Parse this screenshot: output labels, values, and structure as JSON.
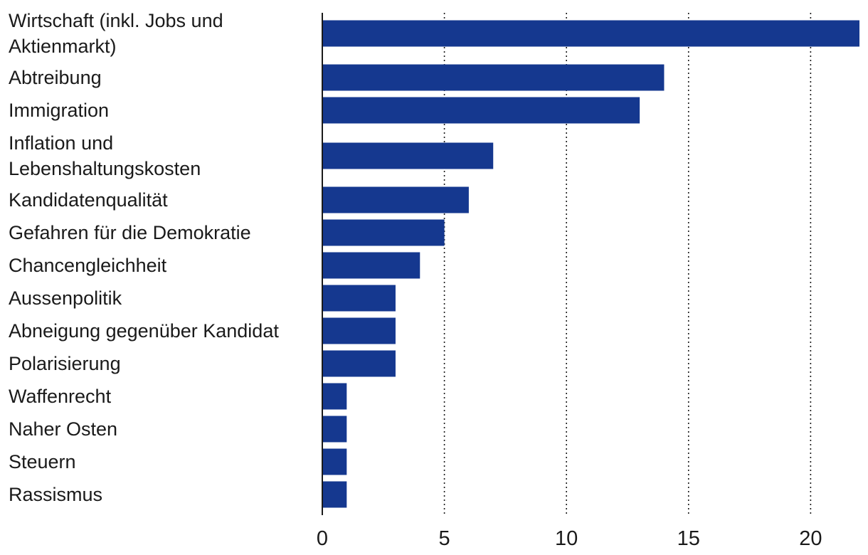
{
  "chart_data": {
    "type": "bar",
    "orientation": "horizontal",
    "categories": [
      [
        "Wirtschaft (inkl. Jobs und",
        "Aktienmarkt)"
      ],
      [
        "Abtreibung"
      ],
      [
        "Immigration"
      ],
      [
        "Inflation und",
        "Lebenshaltungskosten"
      ],
      [
        "Kandidatenqualität"
      ],
      [
        "Gefahren für die Demokratie"
      ],
      [
        "Chancengleichheit"
      ],
      [
        "Aussenpolitik"
      ],
      [
        "Abneigung gegenüber Kandidat"
      ],
      [
        "Polarisierung"
      ],
      [
        "Waffenrecht"
      ],
      [
        "Naher Osten"
      ],
      [
        "Steuern"
      ],
      [
        "Rassismus"
      ]
    ],
    "values": [
      22,
      14,
      13,
      7,
      6,
      5,
      4,
      3,
      3,
      3,
      1,
      1,
      1,
      1
    ],
    "xlim": [
      0,
      22
    ],
    "xticks": [
      0,
      5,
      10,
      15,
      20
    ],
    "xtick_labels": [
      "0",
      "5",
      "10",
      "15",
      "20"
    ],
    "grid": "vertical-dotted",
    "bar_color": "#15388f",
    "title": "",
    "xlabel": "",
    "ylabel": ""
  }
}
